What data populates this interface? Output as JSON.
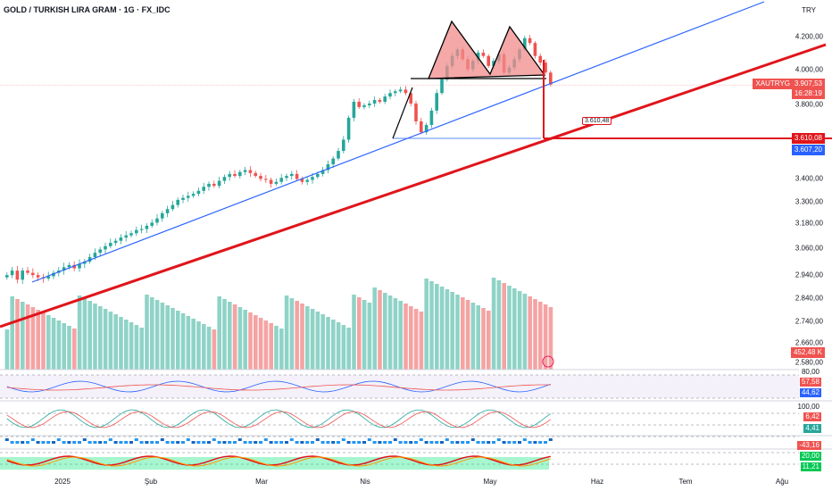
{
  "header": {
    "title": "GOLD / TURKISH LIRA GRAM · 1G · FX_IDC",
    "currency": "TRY"
  },
  "price_tags": {
    "symbol": "XAUTRYG",
    "last": "3.907,53",
    "countdown": "16:28:19",
    "target_a": "3.610,08",
    "target_b": "3.607,20",
    "annotation": "3.610,48",
    "volume": "452,48 K"
  },
  "indicators": {
    "rsi_a": "57,58",
    "rsi_b": "44,62",
    "stoch_top": "100,00",
    "stoch_a": "6,42",
    "stoch_b": "4,41",
    "macd_a": "-43,16",
    "bottom_a": "20,00",
    "bottom_b": "11,21",
    "rsi_level": "80,00"
  },
  "colors": {
    "up": "#26a69a",
    "down": "#ef5350",
    "trend_blue": "#2962ff",
    "trend_red": "#e0151b",
    "pattern_fill": "#f28b8b",
    "vol_up": "#8fd3c7",
    "vol_down": "#f5a3a3"
  },
  "chart_data": {
    "type": "candlestick",
    "ylim": [
      2560,
      4300
    ],
    "y_ticks": [
      "4.200,00",
      "4.000,00",
      "3.800,00",
      "3.400,00",
      "3.300,00",
      "3.180,00",
      "3.060,00",
      "2.940,00",
      "2.840,00",
      "2.740,00",
      "2.660,00",
      "2.580,00"
    ],
    "x_ticks": [
      "2025",
      "Şub",
      "Mar",
      "Nis",
      "May",
      "Haz",
      "Tem",
      "Ağu"
    ],
    "close_series": [
      2940,
      2960,
      2920,
      2960,
      2950,
      2940,
      2930,
      2925,
      2935,
      2950,
      2960,
      2975,
      2985,
      2970,
      2990,
      3000,
      3020,
      3040,
      3055,
      3070,
      3085,
      3095,
      3110,
      3120,
      3130,
      3145,
      3150,
      3165,
      3180,
      3200,
      3225,
      3245,
      3265,
      3290,
      3300,
      3310,
      3320,
      3335,
      3355,
      3370,
      3360,
      3385,
      3405,
      3420,
      3410,
      3430,
      3440,
      3425,
      3410,
      3395,
      3390,
      3370,
      3380,
      3400,
      3410,
      3420,
      3395,
      3380,
      3390,
      3405,
      3420,
      3440,
      3470,
      3500,
      3540,
      3600,
      3720,
      3810,
      3780,
      3790,
      3800,
      3820,
      3810,
      3840,
      3860,
      3870,
      3880,
      3860,
      3800,
      3700,
      3640,
      3680,
      3760,
      3860,
      3940,
      4020,
      4080,
      4120,
      4060,
      4000,
      4050,
      4100,
      4080,
      4020,
      4050,
      4090,
      3980,
      4010,
      4060,
      4120,
      4190,
      4160,
      4080,
      4040,
      3980,
      3910
    ],
    "annotations": [
      "3.610,48"
    ]
  }
}
